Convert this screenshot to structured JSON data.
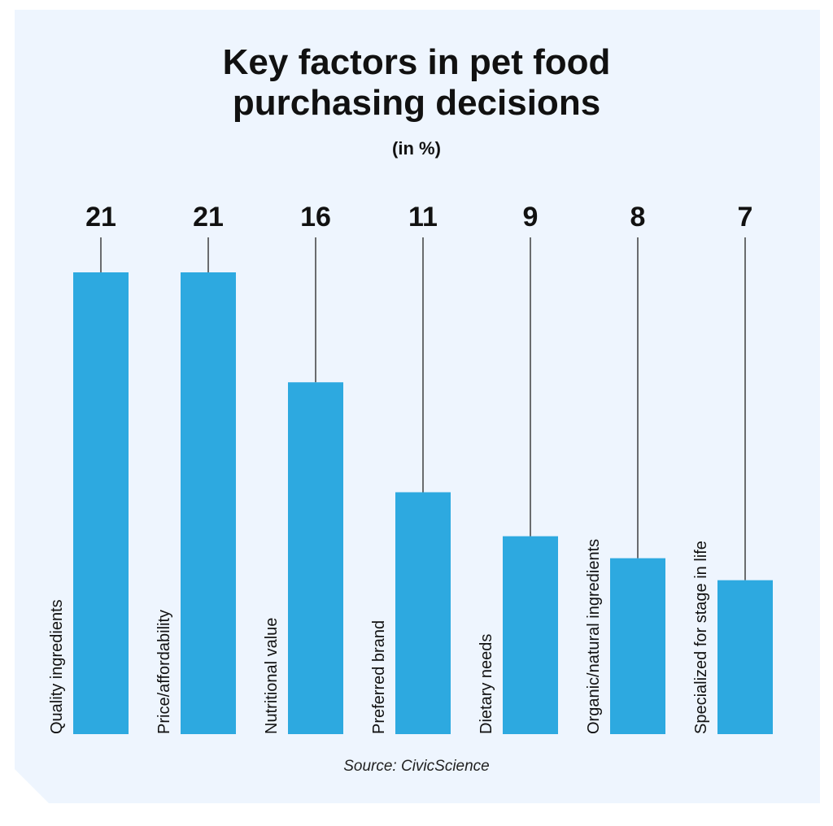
{
  "chart_data": {
    "type": "bar",
    "title": "Key factors in pet food purchasing decisions",
    "title_lines": [
      "Key factors in pet food",
      "purchasing decisions"
    ],
    "subtitle": "(in %)",
    "categories": [
      "Quality ingredients",
      "Price/affordability",
      "Nutritional value",
      "Preferred brand",
      "Dietary needs",
      "Organic/natural ingredients",
      "Specialized for stage in life"
    ],
    "values": [
      21,
      21,
      16,
      11,
      9,
      8,
      7
    ],
    "ylim": [
      0,
      21
    ],
    "grid": false,
    "bar_color": "#2da9e0",
    "background_color": "#eef5fe",
    "source": "Source: CivicScience"
  }
}
